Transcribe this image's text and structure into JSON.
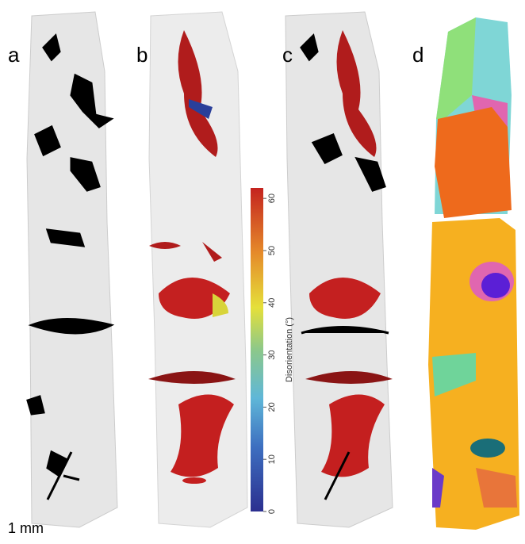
{
  "panels": [
    {
      "label": "a"
    },
    {
      "label": "b"
    },
    {
      "label": "c"
    },
    {
      "label": "d"
    }
  ],
  "colorbar": {
    "label": "Disorientation (°)",
    "lim": [
      0,
      62
    ],
    "ticks": [
      0,
      10,
      20,
      30,
      40,
      50,
      60
    ]
  },
  "scale_bar": "1 mm"
}
